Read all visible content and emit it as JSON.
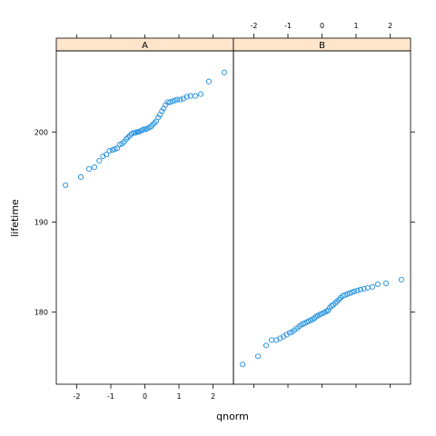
{
  "chart_data": {
    "type": "scatter",
    "title": "",
    "xlabel": "qnorm",
    "ylabel": "lifetime",
    "xlim": [
      -2.6,
      2.6
    ],
    "ylim": [
      172,
      209
    ],
    "x_ticks": [
      -2,
      -1,
      0,
      1,
      2
    ],
    "x_tick_labels": [
      "-2",
      "-1",
      "0",
      "1",
      "2"
    ],
    "y_ticks": [
      180,
      190,
      200
    ],
    "y_tick_labels": [
      "180",
      "190",
      "200"
    ],
    "grid": false,
    "legend": "none",
    "colors": {
      "point": "#1f8fe0",
      "strip": "#ffe5cc",
      "frame": "#000000"
    },
    "panels": [
      {
        "name": "A",
        "x": [
          -2.33,
          -1.88,
          -1.64,
          -1.48,
          -1.34,
          -1.23,
          -1.13,
          -1.04,
          -0.95,
          -0.88,
          -0.81,
          -0.74,
          -0.67,
          -0.61,
          -0.55,
          -0.5,
          -0.44,
          -0.39,
          -0.33,
          -0.28,
          -0.23,
          -0.18,
          -0.13,
          -0.08,
          -0.03,
          0.03,
          0.08,
          0.13,
          0.18,
          0.23,
          0.28,
          0.33,
          0.39,
          0.44,
          0.5,
          0.55,
          0.61,
          0.67,
          0.74,
          0.81,
          0.88,
          0.95,
          1.04,
          1.13,
          1.23,
          1.34,
          1.48,
          1.64,
          1.88,
          2.33
        ],
        "y": [
          194.1,
          195.0,
          195.9,
          196.1,
          196.8,
          197.3,
          197.5,
          197.9,
          198.0,
          198.1,
          198.2,
          198.6,
          198.7,
          198.9,
          199.2,
          199.4,
          199.6,
          199.8,
          199.9,
          199.9,
          200.0,
          200.0,
          200.1,
          200.2,
          200.3,
          200.3,
          200.4,
          200.5,
          200.6,
          200.8,
          201.0,
          201.2,
          201.6,
          201.9,
          202.3,
          202.6,
          203.0,
          203.3,
          203.3,
          203.4,
          203.5,
          203.6,
          203.6,
          203.7,
          203.9,
          204.0,
          204.0,
          204.2,
          205.6,
          206.6
        ]
      },
      {
        "name": "B",
        "x": [
          -2.33,
          -1.88,
          -1.64,
          -1.48,
          -1.34,
          -1.23,
          -1.13,
          -1.04,
          -0.95,
          -0.88,
          -0.81,
          -0.74,
          -0.67,
          -0.61,
          -0.55,
          -0.5,
          -0.44,
          -0.39,
          -0.33,
          -0.28,
          -0.23,
          -0.18,
          -0.13,
          -0.08,
          -0.03,
          0.03,
          0.08,
          0.13,
          0.18,
          0.23,
          0.28,
          0.33,
          0.39,
          0.44,
          0.5,
          0.55,
          0.61,
          0.67,
          0.74,
          0.81,
          0.88,
          0.95,
          1.04,
          1.13,
          1.23,
          1.34,
          1.48,
          1.64,
          1.88,
          2.33
        ],
        "y": [
          174.2,
          175.1,
          176.3,
          176.9,
          176.9,
          177.1,
          177.3,
          177.5,
          177.7,
          177.8,
          178.0,
          178.2,
          178.4,
          178.6,
          178.7,
          178.8,
          178.9,
          179.0,
          179.1,
          179.2,
          179.3,
          179.5,
          179.6,
          179.7,
          179.8,
          179.9,
          180.0,
          180.1,
          180.2,
          180.5,
          180.7,
          180.8,
          181.0,
          181.2,
          181.4,
          181.6,
          181.8,
          181.9,
          182.0,
          182.1,
          182.2,
          182.3,
          182.4,
          182.5,
          182.6,
          182.7,
          182.8,
          183.1,
          183.2,
          183.6
        ]
      }
    ]
  }
}
